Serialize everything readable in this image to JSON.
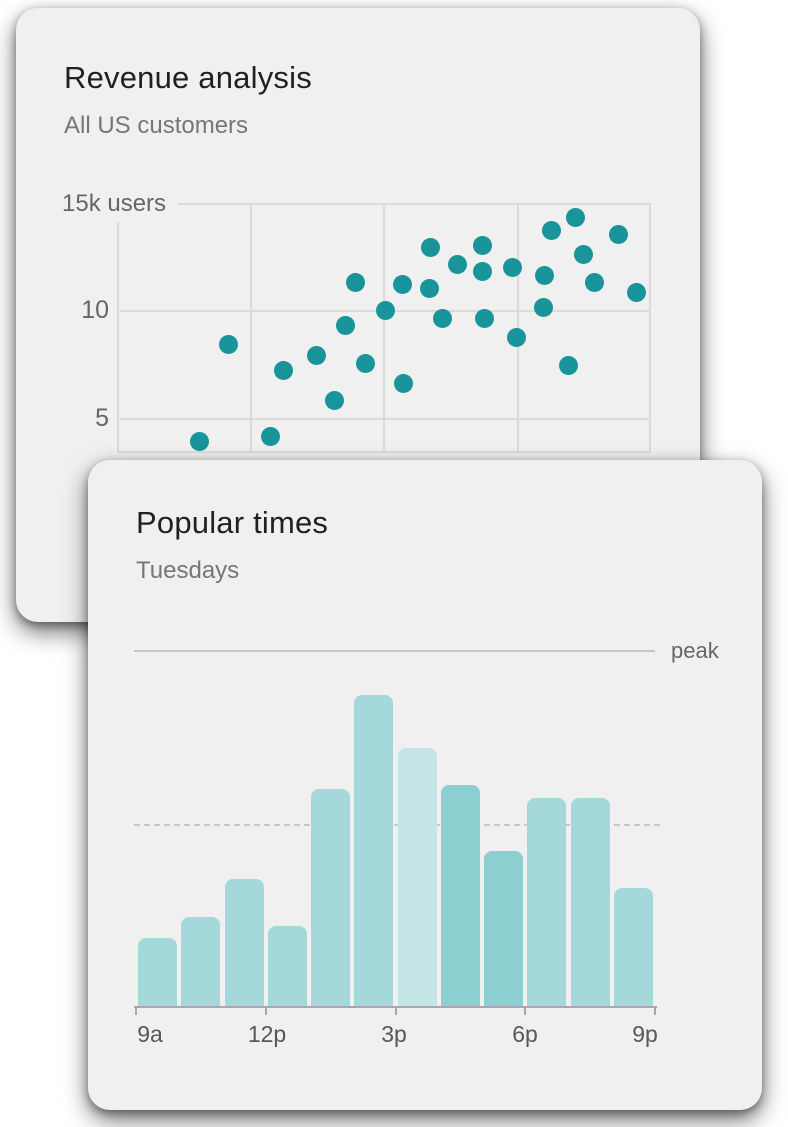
{
  "colors": {
    "card_bg": "#f0f0f0",
    "scatter_dot": "#18949a",
    "gridline": "#dbdbdb",
    "bar_default": "#a4d8da",
    "bar_light": "#c5e4e5",
    "bar_dark": "#8dced1",
    "axis_line": "#a8a8a8",
    "peak_line": "#c5c5c5",
    "dashed_line": "#c8c8c8",
    "title_text": "#202124",
    "subtitle_text": "#767676",
    "axis_text": "#666666"
  },
  "chart_data": [
    {
      "type": "scatter",
      "title": "Revenue analysis",
      "subtitle": "All US customers",
      "y_axis_top_label": "15k users",
      "y_tick_labels": [
        "10",
        "5"
      ],
      "y_gridlines": [
        15,
        10,
        5
      ],
      "y_unit": "k users",
      "x_encoding": "fraction of plot width 0-1 (x-axis labels occluded by overlapping card)",
      "points": [
        [
          0.155,
          3.9
        ],
        [
          0.208,
          8.4
        ],
        [
          0.288,
          4.1
        ],
        [
          0.311,
          7.2
        ],
        [
          0.374,
          7.9
        ],
        [
          0.408,
          5.8
        ],
        [
          0.427,
          9.3
        ],
        [
          0.447,
          11.3
        ],
        [
          0.466,
          7.5
        ],
        [
          0.502,
          10.0
        ],
        [
          0.535,
          11.2
        ],
        [
          0.537,
          6.6
        ],
        [
          0.586,
          11.0
        ],
        [
          0.588,
          12.9
        ],
        [
          0.61,
          9.6
        ],
        [
          0.638,
          12.1
        ],
        [
          0.685,
          13.0
        ],
        [
          0.685,
          11.8
        ],
        [
          0.689,
          9.6
        ],
        [
          0.741,
          12.0
        ],
        [
          0.749,
          8.7
        ],
        [
          0.798,
          10.1
        ],
        [
          0.801,
          11.6
        ],
        [
          0.814,
          13.7
        ],
        [
          0.846,
          7.4
        ],
        [
          0.858,
          14.3
        ],
        [
          0.874,
          12.6
        ],
        [
          0.895,
          11.3
        ],
        [
          0.94,
          13.5
        ],
        [
          0.973,
          10.8
        ]
      ]
    },
    {
      "type": "bar",
      "title": "Popular times",
      "subtitle": "Tuesdays",
      "peak_label": "peak",
      "x_tick_labels": [
        "9a",
        "12p",
        "3p",
        "6p",
        "9p"
      ],
      "hours": [
        "9-10a",
        "10-11a",
        "11-12p",
        "12-1p",
        "1-2p",
        "2-3p",
        "3-4p",
        "4-5p",
        "5-6p",
        "6-7p",
        "7-8p",
        "8-9p"
      ],
      "values_pct_of_peak": [
        22,
        29,
        41,
        26,
        70,
        100,
        83,
        71,
        50,
        67,
        67,
        38
      ],
      "bar_styles": [
        "default",
        "default",
        "default",
        "default",
        "default",
        "default",
        "light",
        "dark",
        "dark",
        "default",
        "default",
        "default"
      ],
      "peak_line_pct": 114,
      "usual_dashed_line_pct": 58,
      "legend_position": "peak label at right end of solid top reference line",
      "grid": "off"
    }
  ]
}
